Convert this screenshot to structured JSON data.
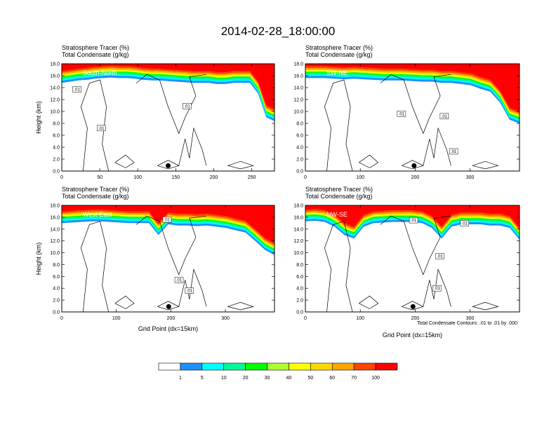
{
  "page": {
    "title": "2014-02-28_18:00:00",
    "grid_point_label": "Grid Point (dx=15km)",
    "contour_note": "Total Condensate Contours: .01 to .01 by .000"
  },
  "colorbar": {
    "colors": [
      "#ffffff",
      "#1e90ff",
      "#00ffff",
      "#00fa9a",
      "#00ff00",
      "#adff2f",
      "#ffff00",
      "#ffd700",
      "#ffa500",
      "#ff4500",
      "#ff0000"
    ],
    "labels": [
      "1",
      "5",
      "10",
      "20",
      "30",
      "40",
      "50",
      "60",
      "70",
      "100"
    ]
  },
  "chart_data": [
    {
      "type": "heatmap",
      "section": "South-North",
      "title_lines": [
        "Stratosphere Tracer   (%)",
        "Total Condensate   (g/kg)"
      ],
      "ylabel": "Height (km)",
      "xlabel": "",
      "xlim": [
        0,
        280
      ],
      "ylim": [
        0,
        18
      ],
      "xticks": [
        0,
        50,
        100,
        150,
        200,
        250
      ],
      "yticks": [
        "0.0",
        "2.0",
        "4.0",
        "6.0",
        "8.0",
        "10.0",
        "12.0",
        "14.0",
        "16.0",
        "18.0"
      ],
      "tracer_base_km": [
        14.8,
        15.0,
        15.2,
        15.3,
        15.5,
        15.6,
        15.7,
        15.6,
        15.6,
        15.5,
        15.3,
        15.2,
        15.2,
        15.1,
        15.0,
        14.9,
        14.8,
        14.8,
        14.8,
        14.6,
        14.6,
        14.8,
        14.8,
        14.8,
        13.0,
        9.0,
        8.4
      ],
      "tracer_max_km": 18,
      "contour_value": ".01",
      "contour_labels": [
        {
          "x": 20,
          "y": 13.7,
          "text": ".01"
        },
        {
          "x": 52,
          "y": 7.2,
          "text": ".01"
        },
        {
          "x": 165,
          "y": 10.9,
          "text": ".01"
        }
      ],
      "marker_x": 140
    },
    {
      "type": "heatmap",
      "section": "SW-NE",
      "title_lines": [
        "Stratosphere Tracer   (%)",
        "Total Condensate   (g/kg)"
      ],
      "ylabel": "",
      "xlabel": "",
      "xlim": [
        0,
        390
      ],
      "ylim": [
        0,
        18
      ],
      "xticks": [
        0,
        100,
        200,
        300
      ],
      "yticks": [
        "0.0",
        "2.0",
        "4.0",
        "6.0",
        "8.0",
        "10.0",
        "12.0",
        "14.0",
        "16.0",
        "18.0"
      ],
      "tracer_base_km": [
        15.6,
        15.6,
        15.6,
        15.5,
        15.4,
        15.5,
        15.4,
        15.3,
        15.2,
        15.2,
        15.2,
        15.1,
        15.0,
        15.0,
        14.8,
        14.8,
        14.6,
        14.4,
        13.8,
        13.3,
        11.5,
        8.6,
        8.0
      ],
      "tracer_max_km": 18,
      "contour_value": ".01",
      "contour_labels": [
        {
          "x": 175,
          "y": 9.6,
          "text": ".01"
        },
        {
          "x": 253,
          "y": 9.2,
          "text": ".01"
        },
        {
          "x": 270,
          "y": 3.3,
          "text": ".01"
        }
      ],
      "marker_x": 198
    },
    {
      "type": "heatmap",
      "section": "West-East",
      "title_lines": [
        "Stratosphere Tracer   (%)",
        "Total Condensate   (g/kg)"
      ],
      "ylabel": "Height (km)",
      "xlabel": "Grid Point (dx=15km)",
      "xlim": [
        0,
        390
      ],
      "ylim": [
        0,
        18
      ],
      "xticks": [
        0,
        100,
        200,
        300
      ],
      "yticks": [
        "0.0",
        "2.0",
        "4.0",
        "6.0",
        "8.0",
        "10.0",
        "12.0",
        "14.0",
        "16.0",
        "18.0"
      ],
      "tracer_base_km": [
        15.0,
        15.1,
        15.2,
        15.3,
        15.3,
        15.2,
        15.1,
        15.0,
        15.0,
        15.0,
        13.0,
        14.8,
        14.6,
        14.6,
        14.5,
        14.6,
        14.4,
        14.2,
        13.8,
        13.4,
        12.0,
        10.5,
        9.6
      ],
      "tracer_max_km": 18,
      "contour_value": ".01",
      "contour_labels": [
        {
          "x": 193,
          "y": 15.6,
          "text": ".01"
        },
        {
          "x": 215,
          "y": 5.4,
          "text": ".01"
        },
        {
          "x": 234,
          "y": 3.6,
          "text": ".01"
        }
      ],
      "marker_x": 196
    },
    {
      "type": "heatmap",
      "section": "NW-SE",
      "title_lines": [
        "Stratosphere Tracer   (%)",
        "Total Condensate   (g/kg)"
      ],
      "ylabel": "",
      "xlabel": "Grid Point (dx=15km)",
      "xlim": [
        0,
        390
      ],
      "ylim": [
        0,
        18
      ],
      "xticks": [
        0,
        100,
        200,
        300
      ],
      "yticks": [
        "0.0",
        "2.0",
        "4.0",
        "6.0",
        "8.0",
        "10.0",
        "12.0",
        "14.0",
        "16.0",
        "18.0"
      ],
      "tracer_base_km": [
        15.3,
        15.4,
        15.2,
        14.4,
        13.0,
        12.4,
        14.4,
        15.0,
        15.1,
        15.2,
        15.2,
        15.2,
        15.0,
        14.2,
        12.4,
        14.4,
        14.8,
        14.8,
        14.8,
        14.6,
        14.6,
        14.2,
        12.2
      ],
      "tracer_max_km": 18,
      "contour_value": ".01",
      "contour_labels": [
        {
          "x": 197,
          "y": 15.5,
          "text": ".01"
        },
        {
          "x": 290,
          "y": 15.0,
          "text": ".01"
        },
        {
          "x": 245,
          "y": 9.4,
          "text": ".01"
        },
        {
          "x": 240,
          "y": 4.0,
          "text": ".01"
        }
      ],
      "marker_x": 196
    }
  ]
}
